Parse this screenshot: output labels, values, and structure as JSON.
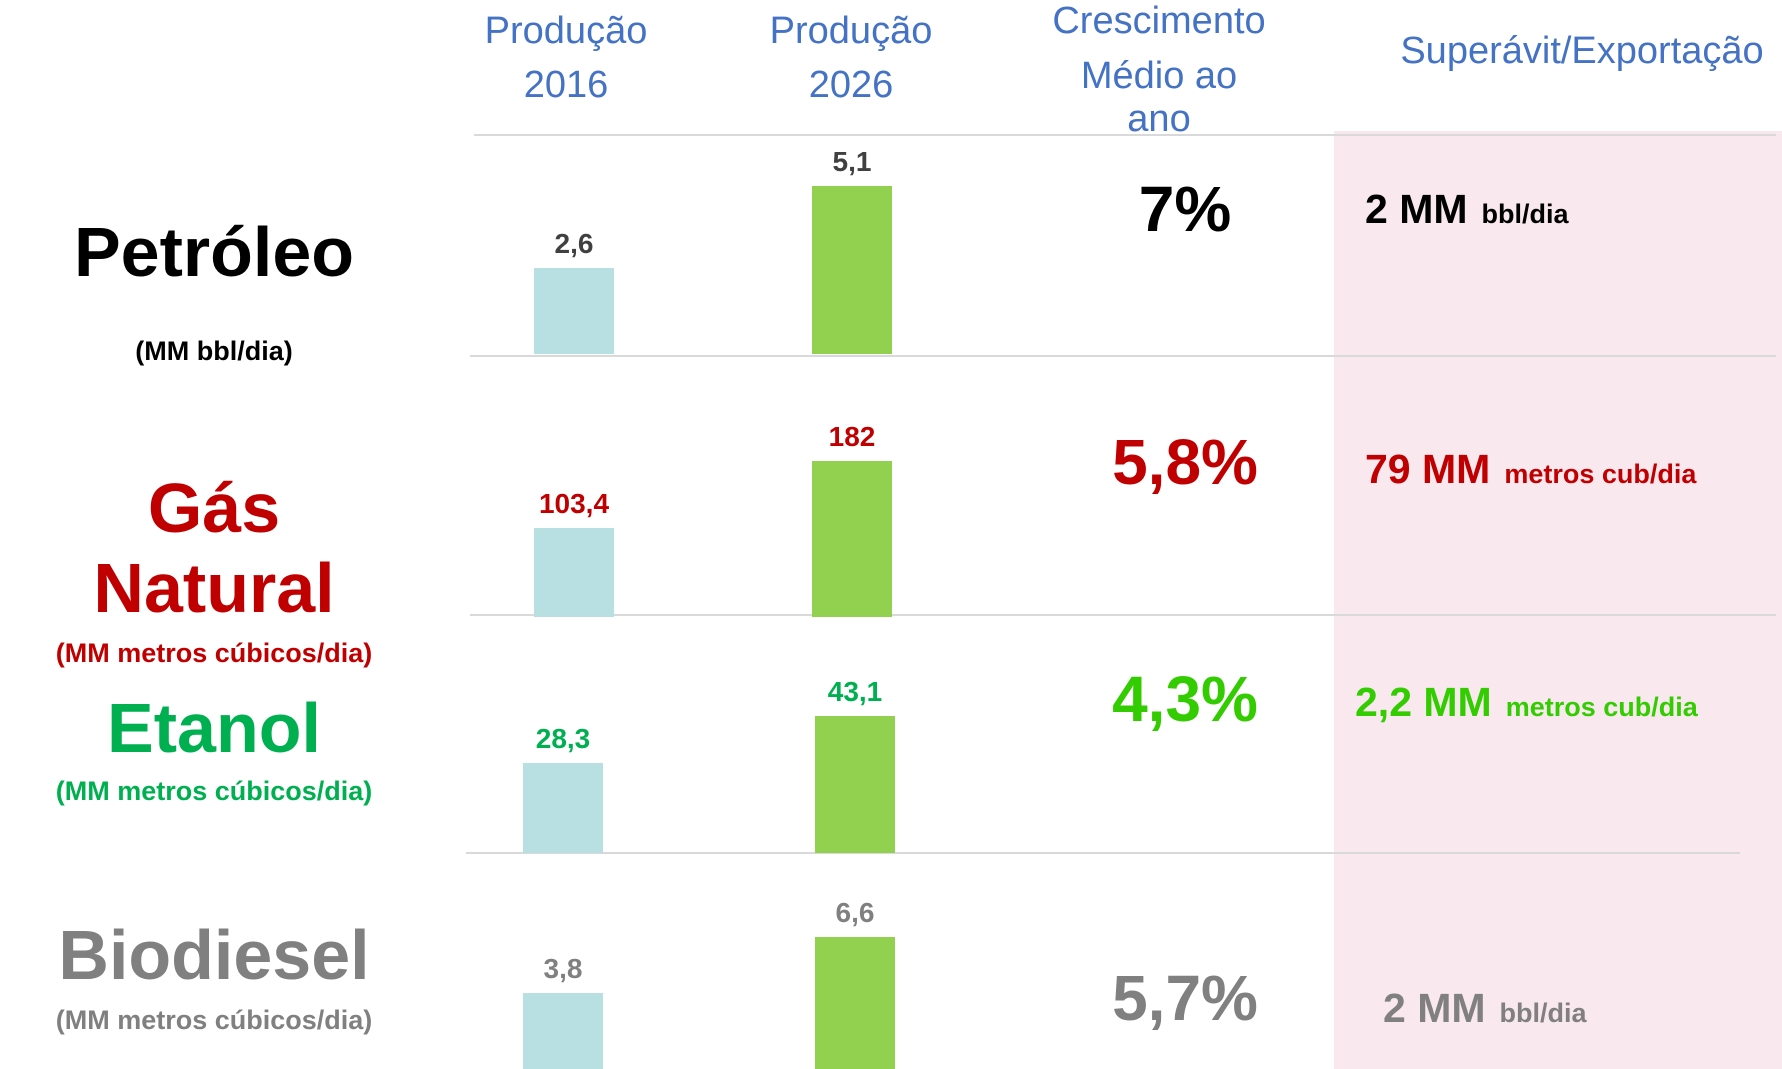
{
  "header": {
    "columns": [
      {
        "line1": "Produção",
        "line2": "2016"
      },
      {
        "line1": "Produção",
        "line2": "2026"
      },
      {
        "line1": "Crescimento",
        "line2": "Médio ao",
        "line3": "ano"
      },
      {
        "line1": "Superávit/Exportação"
      }
    ]
  },
  "rows": [
    {
      "name": [
        "Petróleo"
      ],
      "unit": "(MM bbl/dia)",
      "color": "#000000",
      "growth_color": "#000000",
      "v2016": {
        "value": 2.6,
        "label": "2,6"
      },
      "v2026": {
        "value": 5.1,
        "label": "5,1"
      },
      "value_color": "#404040",
      "growth": "7%",
      "export": "2 MM",
      "export_unit": "bbl/dia"
    },
    {
      "name": [
        "Gás",
        "Natural"
      ],
      "unit": "(MM metros cúbicos/dia)",
      "color": "#c00000",
      "growth_color": "#c00000",
      "v2016": {
        "value": 103.4,
        "label": "103,4"
      },
      "v2026": {
        "value": 182,
        "label": "182"
      },
      "value_color": "#c00000",
      "growth": "5,8%",
      "export": "79 MM",
      "export_unit": "metros cub/dia"
    },
    {
      "name": [
        "Etanol"
      ],
      "unit": "(MM metros cúbicos/dia)",
      "color": "#00b050",
      "growth_color": "#33cc00",
      "v2016": {
        "value": 28.3,
        "label": "28,3"
      },
      "v2026": {
        "value": 43.1,
        "label": "43,1"
      },
      "value_color": "#00b050",
      "growth": "4,3%",
      "export": "2,2 MM",
      "export_unit": "metros cub/dia"
    },
    {
      "name": [
        "Biodiesel"
      ],
      "unit": "(MM metros cúbicos/dia)",
      "color": "#808080",
      "growth_color": "#808080",
      "v2016": {
        "value": 3.8,
        "label": "3,8"
      },
      "v2026": {
        "value": 6.6,
        "label": "6,6"
      },
      "value_color": "#808080",
      "growth": "5,7%",
      "export": "2 MM",
      "export_unit": "bbl/dia"
    }
  ]
}
